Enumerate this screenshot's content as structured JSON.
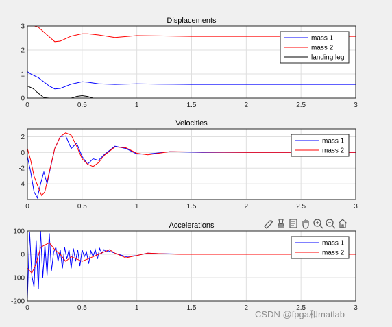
{
  "chart_data": [
    {
      "type": "line",
      "title": "Displacements",
      "xlim": [
        0,
        3
      ],
      "ylim": [
        0,
        3
      ],
      "xticks": [
        "0",
        "0.5",
        "1",
        "1.5",
        "2",
        "2.5",
        "3"
      ],
      "yticks": [
        "0",
        "1",
        "2",
        "3"
      ],
      "grid": true,
      "legend_position": "top-right",
      "series": [
        {
          "name": "mass 1",
          "color": "#0000ff",
          "x": [
            0,
            0.03,
            0.1,
            0.2,
            0.25,
            0.3,
            0.4,
            0.5,
            0.55,
            0.65,
            0.8,
            1.0,
            1.2,
            1.5,
            2.0,
            3.0
          ],
          "y": [
            1.1,
            1.0,
            0.85,
            0.5,
            0.38,
            0.4,
            0.58,
            0.68,
            0.66,
            0.59,
            0.57,
            0.59,
            0.58,
            0.57,
            0.57,
            0.57
          ]
        },
        {
          "name": "mass 2",
          "color": "#ff0000",
          "x": [
            0,
            0.03,
            0.1,
            0.2,
            0.25,
            0.3,
            0.4,
            0.5,
            0.55,
            0.65,
            0.8,
            1.0,
            1.2,
            1.5,
            2.0,
            3.0
          ],
          "y": [
            3.1,
            3.05,
            2.95,
            2.55,
            2.35,
            2.37,
            2.58,
            2.68,
            2.68,
            2.63,
            2.52,
            2.6,
            2.59,
            2.57,
            2.57,
            2.57
          ]
        },
        {
          "name": "landing leg",
          "color": "#000000",
          "x": [
            0,
            0.05,
            0.1,
            0.15,
            0.2,
            0.25,
            0.4,
            0.45,
            0.5,
            0.55,
            0.6,
            0.7,
            3.0
          ],
          "y": [
            0.5,
            0.4,
            0.2,
            0.02,
            0.0,
            0.0,
            0.0,
            0.07,
            0.1,
            0.07,
            0.0,
            0.0,
            0.0
          ]
        }
      ]
    },
    {
      "type": "line",
      "title": "Velocities",
      "xlim": [
        0,
        3
      ],
      "ylim": [
        -6,
        3
      ],
      "xticks": [
        "0",
        "0.5",
        "1",
        "1.5",
        "2",
        "2.5",
        "3"
      ],
      "yticks": [
        "-4",
        "-2",
        "0",
        "2"
      ],
      "grid": true,
      "legend_position": "top-right",
      "series": [
        {
          "name": "mass 1",
          "color": "#0000ff",
          "x": [
            0,
            0.03,
            0.06,
            0.09,
            0.12,
            0.15,
            0.18,
            0.21,
            0.25,
            0.3,
            0.35,
            0.4,
            0.45,
            0.5,
            0.55,
            0.6,
            0.65,
            0.7,
            0.8,
            0.9,
            1.0,
            1.1,
            1.3,
            1.6,
            2.0,
            3.0
          ],
          "y": [
            -0.5,
            -2.5,
            -5.0,
            -5.8,
            -4.0,
            -2.5,
            -4.0,
            -2.0,
            0.5,
            2.0,
            2.1,
            0.5,
            1.2,
            -0.5,
            -1.5,
            -0.8,
            -1.0,
            -0.3,
            0.8,
            0.5,
            -0.2,
            -0.2,
            0.1,
            0.0,
            0.0,
            0.0
          ]
        },
        {
          "name": "mass 2",
          "color": "#ff0000",
          "x": [
            0,
            0.03,
            0.06,
            0.1,
            0.13,
            0.16,
            0.2,
            0.25,
            0.3,
            0.35,
            0.4,
            0.45,
            0.5,
            0.55,
            0.6,
            0.65,
            0.7,
            0.8,
            0.9,
            1.0,
            1.1,
            1.3,
            1.6,
            2.0,
            3.0
          ],
          "y": [
            0.5,
            -1.0,
            -3.0,
            -4.5,
            -5.5,
            -5.0,
            -2.5,
            0.5,
            2.0,
            2.5,
            2.2,
            0.8,
            -0.8,
            -1.5,
            -1.8,
            -1.3,
            -0.4,
            0.7,
            0.6,
            -0.1,
            -0.3,
            0.1,
            0.05,
            0.0,
            0.0
          ]
        }
      ]
    },
    {
      "type": "line",
      "title": "Accelerations",
      "xlim": [
        0,
        3
      ],
      "ylim": [
        -200,
        100
      ],
      "xticks": [
        "0",
        "0.5",
        "1",
        "1.5",
        "2",
        "2.5",
        "3"
      ],
      "yticks": [
        "-200",
        "-100",
        "0",
        "100"
      ],
      "grid": true,
      "legend_position": "top-right",
      "series": [
        {
          "name": "mass 1",
          "color": "#0000ff",
          "x": [
            0,
            0.02,
            0.04,
            0.06,
            0.08,
            0.1,
            0.12,
            0.14,
            0.16,
            0.18,
            0.2,
            0.22,
            0.24,
            0.26,
            0.28,
            0.3,
            0.32,
            0.34,
            0.36,
            0.38,
            0.4,
            0.42,
            0.44,
            0.46,
            0.48,
            0.5,
            0.52,
            0.54,
            0.56,
            0.58,
            0.6,
            0.62,
            0.64,
            0.66,
            0.68,
            0.7,
            0.72,
            0.74,
            0.8,
            0.9,
            1.0,
            1.1,
            1.2,
            1.5,
            2.0,
            3.0
          ],
          "y": [
            -190,
            95,
            -90,
            -140,
            60,
            -150,
            100,
            -100,
            40,
            -90,
            90,
            -70,
            10,
            30,
            -30,
            20,
            -60,
            30,
            -20,
            20,
            -60,
            25,
            -30,
            20,
            -50,
            20,
            -10,
            10,
            -40,
            15,
            -10,
            20,
            -20,
            25,
            5,
            20,
            10,
            15,
            5,
            -10,
            -5,
            5,
            3,
            0,
            0,
            0
          ]
        },
        {
          "name": "mass 2",
          "color": "#ff0000",
          "x": [
            0,
            0.04,
            0.08,
            0.12,
            0.16,
            0.2,
            0.25,
            0.3,
            0.35,
            0.4,
            0.45,
            0.5,
            0.55,
            0.6,
            0.65,
            0.7,
            0.75,
            0.8,
            0.85,
            0.9,
            0.95,
            1.0,
            1.1,
            1.2,
            1.4,
            1.7,
            2.0,
            3.0
          ],
          "y": [
            -60,
            -80,
            -40,
            30,
            40,
            50,
            20,
            0,
            -30,
            -10,
            -20,
            -30,
            -20,
            -10,
            0,
            10,
            20,
            5,
            -5,
            -15,
            -10,
            -5,
            5,
            3,
            0,
            0,
            0,
            0
          ]
        }
      ]
    }
  ],
  "toolbar": {
    "icons": [
      "export-icon",
      "brush-icon",
      "datatip-icon",
      "pan-icon",
      "zoom-in-icon",
      "zoom-out-icon",
      "home-icon"
    ]
  },
  "watermark": "CSDN @fpga和matlab"
}
